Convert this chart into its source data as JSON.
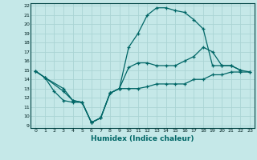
{
  "xlabel": "Humidex (Indice chaleur)",
  "bg_color": "#c5e8e8",
  "line_color": "#006666",
  "grid_color": "#aad4d4",
  "xlim": [
    -0.5,
    23.5
  ],
  "ylim": [
    8.7,
    22.3
  ],
  "xticks": [
    0,
    1,
    2,
    3,
    4,
    5,
    6,
    7,
    8,
    9,
    10,
    11,
    12,
    13,
    14,
    15,
    16,
    17,
    18,
    19,
    20,
    21,
    22,
    23
  ],
  "yticks": [
    9,
    10,
    11,
    12,
    13,
    14,
    15,
    16,
    17,
    18,
    19,
    20,
    21,
    22
  ],
  "line1_x": [
    0,
    1,
    2,
    3,
    4,
    5,
    6,
    7,
    8,
    9,
    10,
    11,
    12,
    13,
    14,
    15,
    16,
    17,
    18,
    19,
    20,
    21,
    22
  ],
  "line1_y": [
    14.9,
    14.2,
    12.7,
    11.7,
    11.5,
    11.5,
    9.3,
    9.8,
    12.5,
    13.0,
    17.5,
    19.0,
    21.0,
    21.8,
    21.8,
    21.5,
    21.3,
    20.5,
    19.5,
    15.5,
    15.5,
    15.5,
    15.0
  ],
  "line2_x": [
    0,
    1,
    3,
    4,
    5,
    6,
    7,
    8,
    9,
    10,
    11,
    12,
    13,
    14,
    15,
    16,
    17,
    18,
    19,
    20,
    21,
    22,
    23
  ],
  "line2_y": [
    14.9,
    14.2,
    13.0,
    11.7,
    11.5,
    9.3,
    9.8,
    12.5,
    13.0,
    15.3,
    15.8,
    15.8,
    15.5,
    15.5,
    15.5,
    16.0,
    16.5,
    17.5,
    17.0,
    15.5,
    15.5,
    15.0,
    14.8
  ],
  "line3_x": [
    0,
    1,
    3,
    4,
    5,
    6,
    7,
    8,
    9,
    10,
    11,
    12,
    13,
    14,
    15,
    16,
    17,
    18,
    19,
    20,
    21,
    22,
    23
  ],
  "line3_y": [
    14.9,
    14.2,
    12.7,
    11.7,
    11.5,
    9.3,
    9.8,
    12.5,
    13.0,
    13.0,
    13.0,
    13.2,
    13.5,
    13.5,
    13.5,
    13.5,
    14.0,
    14.0,
    14.5,
    14.5,
    14.8,
    14.8,
    14.8
  ]
}
